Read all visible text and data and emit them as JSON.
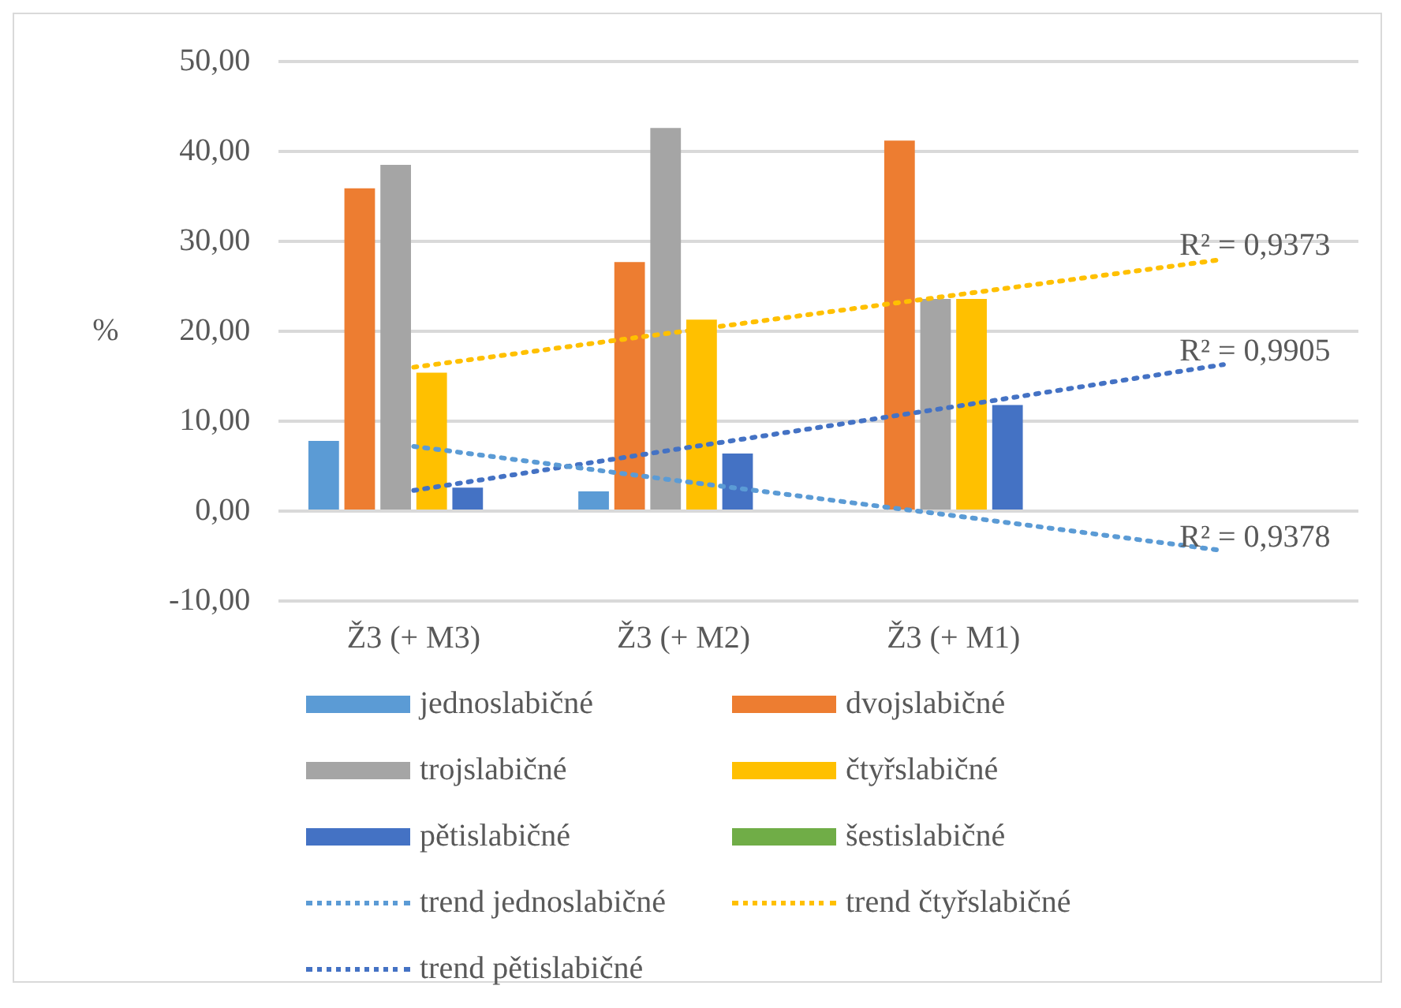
{
  "chart_data": {
    "type": "bar",
    "ylabel": "%",
    "categories": [
      "Ž3 (+ M3)",
      "Ž3 (+ M2)",
      "Ž3 (+ M1)",
      null
    ],
    "series": [
      {
        "name": "jednoslabičné",
        "color": "#5b9bd5",
        "values": [
          7.8,
          2.2,
          0,
          null
        ]
      },
      {
        "name": "dvojslabičné",
        "color": "#ed7d31",
        "values": [
          35.9,
          27.7,
          41.2,
          null
        ]
      },
      {
        "name": "trojslabičné",
        "color": "#a5a5a5",
        "values": [
          38.5,
          42.6,
          23.6,
          null
        ]
      },
      {
        "name": "čtyřslabičné",
        "color": "#ffc000",
        "values": [
          15.4,
          21.3,
          23.6,
          null
        ]
      },
      {
        "name": "pětislabičné",
        "color": "#4472c4",
        "values": [
          2.6,
          6.4,
          11.8,
          null
        ]
      },
      {
        "name": "šestislabičné",
        "color": "#70ad47",
        "values": [
          0,
          0,
          0,
          null
        ]
      },
      {
        "name": "trend jednoslabičné",
        "type": "line",
        "color": "#5b9bd5",
        "line_style": "dotted",
        "values": [
          7.2,
          3.3,
          -0.5,
          -4.4
        ]
      },
      {
        "name": "trend čtyřslabičné",
        "type": "line",
        "color": "#ffc000",
        "line_style": "dotted",
        "values": [
          16,
          20,
          24,
          28
        ]
      },
      {
        "name": "trend pětislabičné",
        "type": "line",
        "color": "#4472c4",
        "line_style": "dotted",
        "values": [
          2.3,
          7,
          11.6,
          16.3
        ]
      }
    ],
    "ylim": [
      -10,
      50
    ],
    "yticks": [
      {
        "value": -10,
        "label": "-10,00"
      },
      {
        "value": 0,
        "label": "0,00"
      },
      {
        "value": 10,
        "label": "10,00"
      },
      {
        "value": 20,
        "label": "20,00"
      },
      {
        "value": 30,
        "label": "30,00"
      },
      {
        "value": 40,
        "label": "40,00"
      },
      {
        "value": 50,
        "label": "50,00"
      }
    ],
    "grid": "y",
    "legend": "bottom",
    "marker": "none",
    "annotations": [
      "R² = 0,9378",
      "R² = 0,9373",
      "R² = 0,9905"
    ]
  }
}
